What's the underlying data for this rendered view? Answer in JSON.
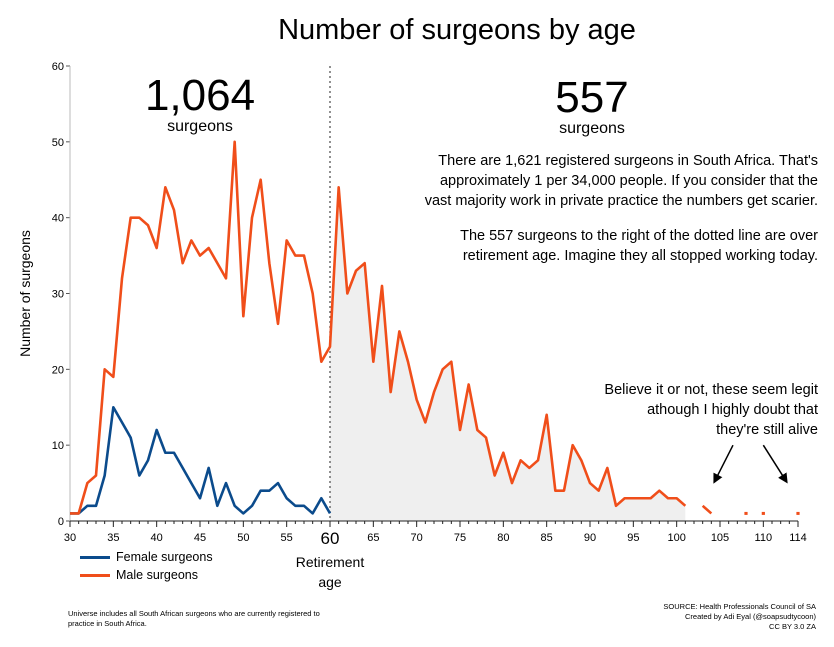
{
  "chart_data": {
    "type": "line",
    "title": "Number of surgeons by age",
    "ylabel": "Number of surgeons",
    "xlim": [
      30,
      114
    ],
    "ylim": [
      0,
      60
    ],
    "yticks": [
      0,
      10,
      20,
      30,
      40,
      50,
      60
    ],
    "xticks": [
      30,
      35,
      40,
      45,
      50,
      55,
      65,
      70,
      75,
      80,
      85,
      90,
      95,
      100,
      105,
      110,
      114
    ],
    "retirement_marker": {
      "x": 60,
      "tick_label": "60",
      "label": "Retirement age"
    },
    "series": [
      {
        "name": "Female surgeons",
        "color": "#0b4b8c",
        "points": [
          [
            30,
            1
          ],
          [
            31,
            1
          ],
          [
            32,
            2
          ],
          [
            33,
            2
          ],
          [
            34,
            6
          ],
          [
            35,
            15
          ],
          [
            36,
            13
          ],
          [
            37,
            11
          ],
          [
            38,
            6
          ],
          [
            39,
            8
          ],
          [
            40,
            12
          ],
          [
            41,
            9
          ],
          [
            42,
            9
          ],
          [
            43,
            7
          ],
          [
            44,
            5
          ],
          [
            45,
            3
          ],
          [
            46,
            7
          ],
          [
            47,
            2
          ],
          [
            48,
            5
          ],
          [
            49,
            2
          ],
          [
            50,
            1
          ],
          [
            51,
            2
          ],
          [
            52,
            4
          ],
          [
            53,
            4
          ],
          [
            54,
            5
          ],
          [
            55,
            3
          ],
          [
            56,
            2
          ],
          [
            57,
            2
          ],
          [
            58,
            1
          ],
          [
            59,
            3
          ],
          [
            60,
            1
          ]
        ]
      },
      {
        "name": "Male surgeons",
        "color": "#f04e1a",
        "points": [
          [
            30,
            1
          ],
          [
            31,
            1
          ],
          [
            32,
            5
          ],
          [
            33,
            6
          ],
          [
            34,
            20
          ],
          [
            35,
            19
          ],
          [
            36,
            32
          ],
          [
            37,
            40
          ],
          [
            38,
            40
          ],
          [
            39,
            39
          ],
          [
            40,
            36
          ],
          [
            41,
            44
          ],
          [
            42,
            41
          ],
          [
            43,
            34
          ],
          [
            44,
            37
          ],
          [
            45,
            35
          ],
          [
            46,
            36
          ],
          [
            47,
            34
          ],
          [
            48,
            32
          ],
          [
            49,
            50
          ],
          [
            50,
            27
          ],
          [
            51,
            40
          ],
          [
            52,
            45
          ],
          [
            53,
            34
          ],
          [
            54,
            26
          ],
          [
            55,
            37
          ],
          [
            56,
            35
          ],
          [
            57,
            35
          ],
          [
            58,
            30
          ],
          [
            59,
            21
          ],
          [
            60,
            23
          ],
          [
            61,
            44
          ],
          [
            62,
            30
          ],
          [
            63,
            33
          ],
          [
            64,
            34
          ],
          [
            65,
            21
          ],
          [
            66,
            31
          ],
          [
            67,
            17
          ],
          [
            68,
            25
          ],
          [
            69,
            21
          ],
          [
            70,
            16
          ],
          [
            71,
            13
          ],
          [
            72,
            17
          ],
          [
            73,
            20
          ],
          [
            74,
            21
          ],
          [
            75,
            12
          ],
          [
            76,
            18
          ],
          [
            77,
            12
          ],
          [
            78,
            11
          ],
          [
            79,
            6
          ],
          [
            80,
            9
          ],
          [
            81,
            5
          ],
          [
            82,
            8
          ],
          [
            83,
            7
          ],
          [
            84,
            8
          ],
          [
            85,
            14
          ],
          [
            86,
            4
          ],
          [
            87,
            4
          ],
          [
            88,
            10
          ],
          [
            89,
            8
          ],
          [
            90,
            5
          ],
          [
            91,
            4
          ],
          [
            92,
            7
          ],
          [
            93,
            2
          ],
          [
            94,
            3
          ],
          [
            95,
            3
          ],
          [
            96,
            3
          ],
          [
            97,
            3
          ],
          [
            98,
            4
          ],
          [
            99,
            3
          ],
          [
            100,
            3
          ],
          [
            101,
            2
          ],
          null,
          [
            103,
            2
          ],
          [
            104,
            1
          ],
          null,
          [
            108,
            1
          ],
          null,
          [
            110,
            1
          ],
          null,
          [
            114,
            1
          ]
        ]
      }
    ],
    "annotations": {
      "left_count": "1,064",
      "left_count_label": "surgeons",
      "right_count": "557",
      "right_count_label": "surgeons",
      "paragraph1": [
        "There are 1,621 registered surgeons in South Africa. That's",
        "approximately 1 per 34,000 people. If you consider that the",
        "vast majority work in private practice the numbers get scarier."
      ],
      "paragraph2": [
        "The 557 surgeons to the right of the dotted line are over",
        "retirement age. Imagine they all stopped working today."
      ],
      "paragraph3": [
        "Believe it or not, these seem legit",
        "athough I highly doubt that",
        "they're still alive"
      ]
    },
    "legend": {
      "placement": "bottom-left"
    },
    "footnote": [
      "Universe includes all South African surgeons who are currently registered to",
      "practice in South Africa."
    ],
    "source": [
      "SOURCE: Health Professionals Council of SA",
      "Created by Adi Eyal (@soapsudtycoon)",
      "CC BY 3.0 ZA"
    ]
  }
}
